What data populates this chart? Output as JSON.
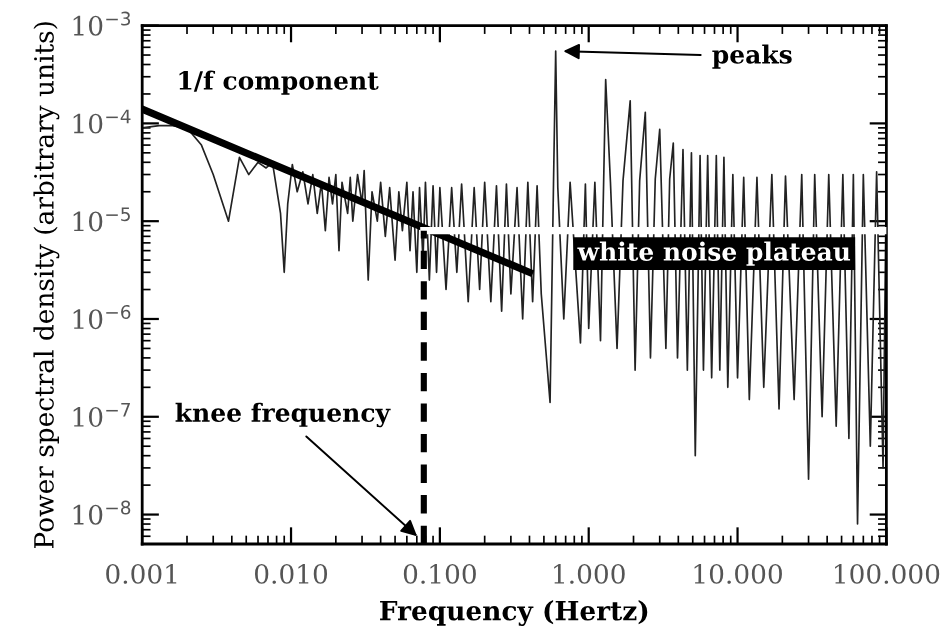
{
  "chart_data": {
    "type": "line",
    "xlabel": "Frequency (Hertz)",
    "ylabel": "Power spectral density (arbitrary units)",
    "log": "xy",
    "grid": false,
    "xlim": [
      0.001,
      100
    ],
    "ylim": [
      5e-09,
      0.001
    ],
    "xticks": [
      {
        "value": 0.001,
        "label": "0.001"
      },
      {
        "value": 0.01,
        "label": "0.010"
      },
      {
        "value": 0.1,
        "label": "0.100"
      },
      {
        "value": 1,
        "label": "1.000"
      },
      {
        "value": 10,
        "label": "10.000"
      },
      {
        "value": 100,
        "label": "100.000"
      }
    ],
    "yticks": [
      {
        "value": 0.001,
        "label": "10$^{−3}$"
      },
      {
        "value": 0.0001,
        "label": "10$^{−4}$"
      },
      {
        "value": 1e-05,
        "label": "10$^{−5}$"
      },
      {
        "value": 1e-06,
        "label": "10$^{−6}$"
      },
      {
        "value": 1e-07,
        "label": "10$^{−7}$"
      },
      {
        "value": 1e-08,
        "label": "10$^{−8}$"
      }
    ],
    "series": [
      {
        "color": "#222222",
        "x": [
          0.001,
          0.0013,
          0.0016,
          0.002,
          0.0025,
          0.003,
          0.0038,
          0.0045,
          0.0052,
          0.006,
          0.0068,
          0.0075,
          0.0085,
          0.009,
          0.0095,
          0.0102,
          0.011,
          0.012,
          0.013,
          0.014,
          0.015,
          0.016,
          0.017,
          0.018,
          0.019,
          0.02,
          0.021,
          0.022,
          0.024,
          0.025,
          0.026,
          0.028,
          0.03,
          0.031,
          0.033,
          0.035,
          0.038,
          0.04,
          0.043,
          0.046,
          0.05,
          0.053,
          0.056,
          0.06,
          0.063,
          0.066,
          0.07,
          0.073,
          0.077,
          0.08,
          0.085,
          0.09,
          0.095,
          0.1,
          0.11,
          0.12,
          0.13,
          0.14,
          0.155,
          0.17,
          0.185,
          0.2,
          0.22,
          0.24,
          0.26,
          0.28,
          0.3,
          0.33,
          0.36,
          0.39,
          0.42,
          0.45,
          0.48,
          0.55,
          0.58,
          0.6,
          0.62,
          0.68,
          0.75,
          0.88,
          0.95,
          1.0,
          1.1,
          1.2,
          1.3,
          1.4,
          1.55,
          1.7,
          1.9,
          2.05,
          2.2,
          2.4,
          2.6,
          2.8,
          3.0,
          3.3,
          3.5,
          3.7,
          3.95,
          4.3,
          4.6,
          4.9,
          5.2,
          5.6,
          5.9,
          6.3,
          6.7,
          7.2,
          7.6,
          8.1,
          8.6,
          9.3,
          10,
          11,
          12,
          13.5,
          15,
          17,
          19,
          21,
          24,
          27,
          30,
          33,
          37,
          41,
          46,
          51,
          56,
          60,
          64,
          70,
          78,
          86,
          95,
          100
        ],
        "values": [
          9e-05,
          9.5e-05,
          9.5e-05,
          9e-05,
          6e-05,
          3e-05,
          1e-05,
          4.5e-05,
          3e-05,
          4e-05,
          3.5e-05,
          4e-05,
          1.2e-05,
          3e-06,
          1.5e-05,
          3.8e-05,
          2e-05,
          3.2e-05,
          1.5e-05,
          3e-05,
          1.2e-05,
          2.5e-05,
          8e-06,
          2.8e-05,
          1.5e-05,
          3e-05,
          5e-06,
          2.5e-05,
          1.2e-05,
          2.8e-05,
          1e-05,
          3e-05,
          1.5e-05,
          3.3e-05,
          2.5e-06,
          2e-05,
          1e-05,
          2.5e-05,
          7e-06,
          2.2e-05,
          4e-06,
          2e-05,
          8e-06,
          2.5e-05,
          5e-06,
          2e-05,
          3e-06,
          2.2e-05,
          4e-06,
          2.5e-05,
          2.5e-06,
          2.3e-05,
          3e-06,
          2.2e-05,
          2e-06,
          2.2e-05,
          3e-06,
          2.4e-05,
          1.5e-06,
          2.2e-05,
          2e-06,
          2.5e-05,
          1.5e-06,
          2.3e-05,
          1.2e-06,
          2.4e-05,
          1.8e-06,
          2.2e-05,
          1e-06,
          2.5e-05,
          1.5e-06,
          2.3e-05,
          1.8e-06,
          1.4e-07,
          2.4e-05,
          0.00055,
          2.2e-05,
          1e-06,
          2.5e-05,
          5.7e-07,
          2.4e-05,
          8e-07,
          2.5e-05,
          6e-07,
          0.00028,
          2.5e-05,
          5e-07,
          2.6e-05,
          0.00017,
          3e-07,
          2.6e-05,
          0.00013,
          4e-07,
          2.7e-05,
          8.7e-05,
          5e-07,
          2.7e-05,
          6.3e-05,
          4e-07,
          5.4e-05,
          3e-07,
          5e-05,
          4e-08,
          4.7e-05,
          3e-07,
          4.7e-05,
          2.5e-07,
          4.7e-05,
          3e-07,
          4.5e-05,
          2e-07,
          3e-05,
          2.5e-07,
          2.8e-05,
          1.5e-07,
          2.8e-05,
          2e-07,
          3e-05,
          1.2e-07,
          2.9e-05,
          1.5e-07,
          3e-05,
          2.3e-08,
          3e-05,
          1e-07,
          3e-05,
          8e-08,
          3e-05,
          6e-08,
          3e-05,
          8e-09,
          3e-05,
          5e-08,
          3.2e-05,
          3e-08,
          3e-05
        ]
      },
      {
        "color": "#000000",
        "x": [
          0.001,
          0.4
        ],
        "values": [
          0.00014,
          3e-06
        ]
      },
      {
        "color": "#ffffff",
        "x": [
          0.078,
          100
        ],
        "values": [
          8e-06,
          8e-06
        ]
      },
      {
        "color": "#000000",
        "line_style": "dashed",
        "x": [
          0.078,
          0.078
        ],
        "values": [
          5e-09,
          8e-06
        ]
      }
    ],
    "annotations": [
      "1/f component",
      {
        "text": "peaks",
        "x": 0.62,
        "y": 0.00055
      },
      "white noise plateau",
      {
        "text": "knee frequency",
        "x": 0.075,
        "y": 5.5e-09
      }
    ]
  }
}
